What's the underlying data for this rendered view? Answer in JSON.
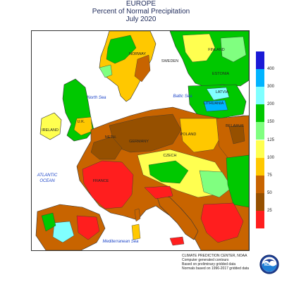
{
  "header": {
    "region": "EUROPE",
    "subtitle": "Percent of Normal Precipitation",
    "period": "July 2020"
  },
  "map": {
    "water_labels": [
      "North Sea",
      "Baltic Sea",
      "ATLANTIC",
      "OCEAN",
      "Mediterranean Sea"
    ],
    "country_labels": [
      "FINLAND",
      "NORWAY",
      "SWEDEN",
      "ESTONIA",
      "LATVIA",
      "LITHUANIA",
      "BELARUS",
      "IRELAND",
      "U.K.",
      "NETH.",
      "GERMANY",
      "POLAND",
      "CZECH",
      "FRANCE"
    ]
  },
  "legend": {
    "ticks": [
      "400",
      "300",
      "200",
      "150",
      "125",
      "100",
      "75",
      "50",
      "25"
    ],
    "colors": [
      "#1a1ad6",
      "#00b4ff",
      "#80ffff",
      "#00c800",
      "#80ff80",
      "#ffff50",
      "#ffc800",
      "#c86400",
      "#965000",
      "#ff1e1e"
    ]
  },
  "credit": {
    "lines": [
      "CLIMATE PREDICTION CENTER, NOAA",
      "Computer generated contours",
      "Based on preliminary gridded data",
      "Normals based on 1996-2017 gridded data"
    ]
  },
  "logo": {
    "text": "NOAA"
  }
}
